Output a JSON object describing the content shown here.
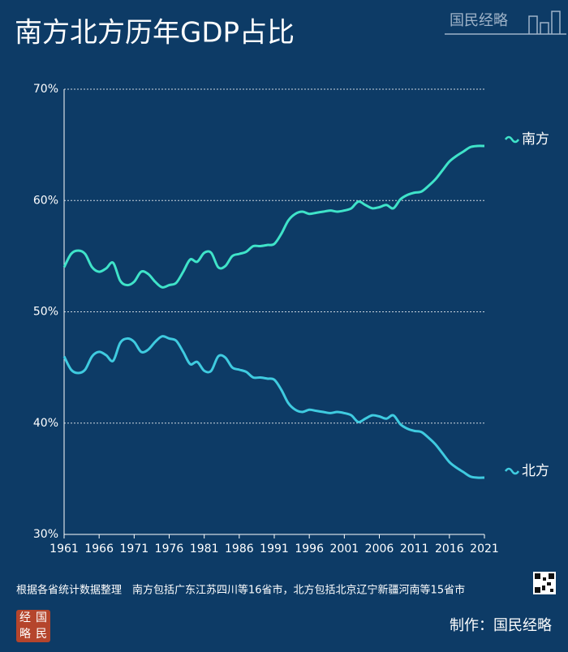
{
  "chart_data": {
    "type": "line",
    "title": "南方北方历年GDP占比",
    "logo": "国民经略",
    "seal": [
      "经",
      "国",
      "略",
      "民"
    ],
    "note": "根据各省统计数据整理　南方包括广东江苏四川等16省市，北方包括北京辽宁新疆河南等15省市",
    "credit": "制作：国民经略",
    "x": [
      1961,
      1962,
      1963,
      1964,
      1965,
      1966,
      1967,
      1968,
      1969,
      1970,
      1971,
      1972,
      1973,
      1974,
      1975,
      1976,
      1977,
      1978,
      1979,
      1980,
      1981,
      1982,
      1983,
      1984,
      1985,
      1986,
      1987,
      1988,
      1989,
      1990,
      1991,
      1992,
      1993,
      1994,
      1995,
      1996,
      1997,
      1998,
      1999,
      2000,
      2001,
      2002,
      2003,
      2004,
      2005,
      2006,
      2007,
      2008,
      2009,
      2010,
      2011,
      2012,
      2013,
      2014,
      2015,
      2016,
      2017,
      2018,
      2019,
      2020,
      2021
    ],
    "xlim": [
      1961,
      2021
    ],
    "xticks": [
      1961,
      1966,
      1971,
      1976,
      1981,
      1986,
      1991,
      1996,
      2001,
      2006,
      2011,
      2016,
      2021
    ],
    "ylim": [
      30,
      70
    ],
    "yticks": [
      {
        "value": 30,
        "label": "30%"
      },
      {
        "value": 40,
        "label": "40%"
      },
      {
        "value": 50,
        "label": "50%"
      },
      {
        "value": 60,
        "label": "60%"
      },
      {
        "value": 70,
        "label": "70%"
      }
    ],
    "grid": true,
    "series": [
      {
        "name": "南方",
        "color": "#3fe3c9",
        "values": [
          54.0,
          55.2,
          55.5,
          55.2,
          54.0,
          53.6,
          53.9,
          54.4,
          52.8,
          52.4,
          52.7,
          53.6,
          53.4,
          52.7,
          52.2,
          52.4,
          52.6,
          53.6,
          54.7,
          54.5,
          55.3,
          55.3,
          54.0,
          54.1,
          55.0,
          55.2,
          55.4,
          55.9,
          55.9,
          56.0,
          56.1,
          57.0,
          58.2,
          58.8,
          59.0,
          58.8,
          58.9,
          59.0,
          59.1,
          59.0,
          59.1,
          59.3,
          59.9,
          59.6,
          59.3,
          59.4,
          59.6,
          59.3,
          60.1,
          60.5,
          60.7,
          60.8,
          61.3,
          61.9,
          62.7,
          63.5,
          64.0,
          64.4,
          64.8,
          64.9,
          64.9
        ]
      },
      {
        "name": "北方",
        "color": "#3fcbe0",
        "values": [
          46.0,
          44.8,
          44.5,
          44.8,
          46.0,
          46.4,
          46.1,
          45.6,
          47.2,
          47.6,
          47.3,
          46.4,
          46.6,
          47.3,
          47.8,
          47.6,
          47.4,
          46.4,
          45.3,
          45.5,
          44.7,
          44.7,
          46.0,
          45.9,
          45.0,
          44.8,
          44.6,
          44.1,
          44.1,
          44.0,
          43.9,
          43.0,
          41.8,
          41.2,
          41.0,
          41.2,
          41.1,
          41.0,
          40.9,
          41.0,
          40.9,
          40.7,
          40.1,
          40.4,
          40.7,
          40.6,
          40.4,
          40.7,
          39.9,
          39.5,
          39.3,
          39.2,
          38.7,
          38.1,
          37.3,
          36.5,
          36.0,
          35.6,
          35.2,
          35.1,
          35.1
        ]
      }
    ]
  }
}
